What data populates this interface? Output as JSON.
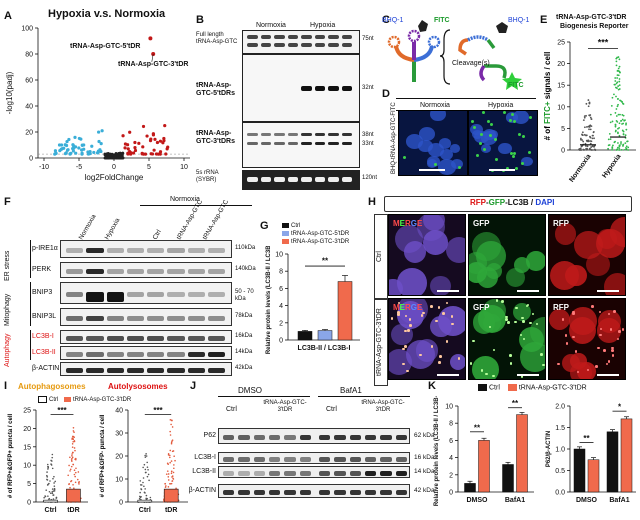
{
  "panels": {
    "A": {
      "letter": "A",
      "title": "Hypoxia v.s. Normoxia",
      "ylabel": "-log10(padj)",
      "xlabel": "log2FoldChange",
      "xticks": [
        "-10",
        "-5",
        "0",
        "5",
        "10"
      ],
      "yticks": [
        "0",
        "20",
        "40",
        "60",
        "80",
        "100"
      ],
      "annot1": "tRNA-Asp-GTC-5'tDR",
      "annot2": "tRNA-Asp-GTC-3'tDR"
    },
    "B": {
      "letter": "B",
      "col1": "Normoxia",
      "col2": "Hypoxia",
      "row1": "Full length tRNA-Asp-GTC",
      "row2": "tRNA-Asp-GTC-5'tDRs",
      "row3": "tRNA-Asp-GTC-3'tDRs",
      "row4": "5s rRNA (SYBR)",
      "size1": "75nt",
      "size2": "32nt",
      "size3a": "38nt",
      "size3b": "33nt",
      "size4": "120nt"
    },
    "C": {
      "letter": "C",
      "bhq_left": "BHQ-1",
      "fitc_left": "FITC",
      "bhq_right": "BHQ-1",
      "fitc_right": "FITC",
      "cleavage": "Cleavage(s)"
    },
    "D": {
      "letter": "D",
      "col1": "Normoxia",
      "col2": "Hypoxia",
      "side": "BHQ-tRNA-Asp-GTC-FITC"
    },
    "E": {
      "letter": "E",
      "title1": "tRNA-Asp-GTC-3'tDR",
      "title2": "Biogenesis Reporter",
      "ylabel": "# of FITC+ signals / cell",
      "yticks": [
        "0",
        "5",
        "10",
        "15",
        "20",
        "25"
      ],
      "cat1": "Normoxia",
      "cat2": "Hypoxia",
      "sig": "***"
    },
    "F": {
      "letter": "F",
      "header": "Normoxia",
      "lanes": [
        "Normoxia",
        "Hypoxia",
        "Ctrl",
        "tRNA-Asp-GTC-5'tDR",
        "tRNA-Asp-GTC-3'tDR"
      ],
      "groups": [
        "ER stress",
        "Mitophagy",
        "Autophagy"
      ],
      "rows": [
        "p-IRE1α",
        "PERK",
        "BNIP3",
        "BNIP3L",
        "LC3B-I",
        "LC3B-II",
        "β-ACTIN"
      ],
      "sizes": [
        "110kDa",
        "140kDa",
        "50 - 70 kDa",
        "78kDa",
        "16kDa",
        "14kDa",
        "42kDa"
      ]
    },
    "G": {
      "letter": "G",
      "legend": [
        "Ctrl",
        "tRNA-Asp-GTC-5'tDR",
        "tRNA-Asp-GTC-3'tDR"
      ],
      "ylabel": "Relative protein levels (LC3B-II / LC3B-I)",
      "xlabel": "LC3B-II / LC3B-I",
      "yticks": [
        "0",
        "2",
        "4",
        "6",
        "8",
        "10"
      ],
      "sig": "**"
    },
    "H": {
      "letter": "H",
      "title_parts": [
        "RFP",
        "-",
        "GFP",
        "-LC3B / ",
        "DAPI"
      ],
      "rows": [
        "Ctrl",
        "tRNA-Asp-GTC-3'tDR"
      ],
      "merge": "MERGE",
      "gfp": "GFP",
      "rfp": "RFP"
    },
    "I": {
      "letter": "I",
      "head1": "Autophagosomes",
      "head2": "Autolysosomes",
      "legend": [
        "Ctrl",
        "tRNA-Asp-GTC-3'tDR"
      ],
      "ylabel1": "# of RFP+&GFP+ puncta / cell",
      "ylabel2": "# of RFP+&GFP- puncta / cell",
      "yticks1": [
        "0",
        "5",
        "10",
        "15",
        "20",
        "25"
      ],
      "yticks2": [
        "0",
        "10",
        "20",
        "30",
        "40"
      ],
      "cats": [
        "Ctrl",
        "tDR"
      ],
      "sig": "***"
    },
    "J": {
      "letter": "J",
      "group1": "DMSO",
      "group2": "BafA1",
      "lane_ctrl": "Ctrl",
      "lane_tdr": "tRNA-Asp-GTC-3'tDR",
      "rows": [
        "P62",
        "LC3B-I",
        "LC3B-II",
        "β-ACTIN"
      ],
      "sizes": [
        "62 kDa",
        "16 kDa",
        "14 kDa",
        "42 kDa"
      ]
    },
    "K": {
      "letter": "K",
      "legend": [
        "Ctrl",
        "tRNA-Asp-GTC-3'tDR"
      ],
      "ylabel1": "Relative protein levels (LC3B-II / LC3B-I)",
      "ylabel2": "P62/β-ACTIN",
      "yticks1": [
        "0",
        "2",
        "4",
        "6",
        "8",
        "10"
      ],
      "yticks2": [
        "0.0",
        "0.5",
        "1.0",
        "1.5",
        "2.0"
      ],
      "cats": [
        "DMSO",
        "BafA1"
      ],
      "sig1": "**",
      "sig2": "**",
      "sig3": "**",
      "sig4": "*"
    }
  },
  "colors": {
    "ctrl": "#111111",
    "tdr5": "#8aa6e8",
    "tdr3": "#f06a4c",
    "volcano_up": "#c21818",
    "volcano_down": "#3aaed8",
    "volcano_ns": "#222222"
  },
  "chart_data": [
    {
      "type": "bar",
      "title": "",
      "categories": [
        "LC3B-II / LC3B-I"
      ],
      "series": [
        {
          "name": "Ctrl",
          "values": [
            1.0
          ]
        },
        {
          "name": "tRNA-Asp-GTC-5'tDR",
          "values": [
            1.1
          ]
        },
        {
          "name": "tRNA-Asp-GTC-3'tDR",
          "values": [
            6.8
          ]
        }
      ],
      "ylabel": "Relative protein levels (LC3B-II / LC3B-I)",
      "ylim": [
        0,
        10
      ]
    },
    {
      "type": "bar",
      "title": "",
      "categories": [
        "DMSO",
        "BafA1"
      ],
      "series": [
        {
          "name": "Ctrl",
          "values": [
            1.0,
            3.2
          ]
        },
        {
          "name": "tRNA-Asp-GTC-3'tDR",
          "values": [
            6.0,
            9.0
          ]
        }
      ],
      "ylabel": "Relative protein levels (LC3B-II / LC3B-I)",
      "ylim": [
        0,
        10
      ]
    },
    {
      "type": "bar",
      "title": "",
      "categories": [
        "DMSO",
        "BafA1"
      ],
      "series": [
        {
          "name": "Ctrl",
          "values": [
            1.0,
            1.4
          ]
        },
        {
          "name": "tRNA-Asp-GTC-3'tDR",
          "values": [
            0.75,
            1.7
          ]
        }
      ],
      "ylabel": "P62/β-ACTIN",
      "ylim": [
        0,
        2
      ]
    }
  ]
}
